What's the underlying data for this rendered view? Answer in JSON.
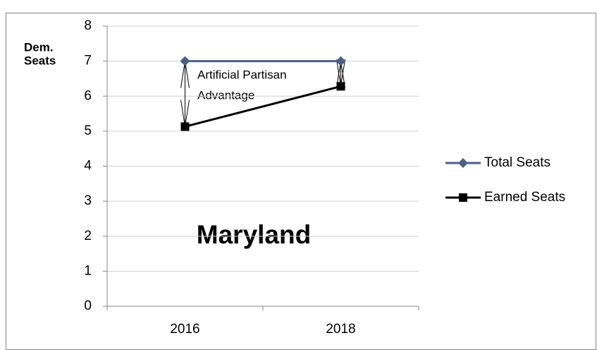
{
  "chart_data": {
    "type": "line",
    "title": "Maryland",
    "ylabel": [
      "Dem.",
      "Seats"
    ],
    "annotation": [
      "Artificial Partisan",
      "Advantage"
    ],
    "categories": [
      "2016",
      "2018"
    ],
    "series": [
      {
        "name": "Total Seats",
        "color": "#4a6184",
        "marker": "diamond",
        "values": [
          7,
          7
        ]
      },
      {
        "name": "Earned Seats",
        "color": "#000000",
        "marker": "square",
        "values": [
          5.13,
          6.28
        ]
      }
    ],
    "ylim": [
      0,
      8
    ],
    "yticks": [
      0,
      1,
      2,
      3,
      4,
      5,
      6,
      7,
      8
    ],
    "grid": true,
    "legend": "right"
  }
}
